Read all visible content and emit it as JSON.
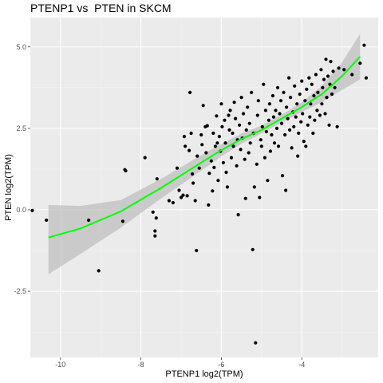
{
  "chart_data": {
    "type": "scatter",
    "title": "PTENP1 vs  PTEN in SKCM",
    "xlabel": "PTENP1 log2(TPM)",
    "ylabel": "PTEN log2(TPM)",
    "xlim": [
      -10.75,
      -2.1
    ],
    "ylim": [
      -4.53,
      5.9
    ],
    "xticks": [
      -10,
      -8,
      -6,
      -4
    ],
    "yticks": [
      -2.5,
      0.0,
      2.5,
      5.0
    ],
    "x_tick_labels": [
      "-10",
      "-8",
      "-6",
      "-4"
    ],
    "y_tick_labels": [
      "-2.5",
      "0.0",
      "2.5",
      "5.0"
    ],
    "grid": true,
    "colors": {
      "panel": "#ebebeb",
      "grid_major": "#ffffff",
      "grid_minor": "#f5f5f5",
      "points": "#000000",
      "fit_line": "#00ff00",
      "ribbon": "#bfbfbf"
    },
    "fit": {
      "x": [
        -10.3,
        -9.5,
        -8.5,
        -7.5,
        -6.5,
        -6.0,
        -5.5,
        -5.0,
        -4.5,
        -4.0,
        -3.5,
        -3.0,
        -2.55
      ],
      "y": [
        -0.85,
        -0.57,
        -0.05,
        0.67,
        1.45,
        1.83,
        2.17,
        2.45,
        2.8,
        3.15,
        3.55,
        4.1,
        4.7
      ],
      "lower": [
        -1.98,
        -1.35,
        -0.55,
        0.35,
        1.2,
        1.64,
        2.03,
        2.34,
        2.68,
        3.0,
        3.3,
        3.68,
        4.0
      ],
      "upper": [
        0.15,
        0.12,
        0.3,
        0.95,
        1.68,
        2.02,
        2.34,
        2.59,
        2.92,
        3.3,
        3.8,
        4.52,
        5.4
      ]
    },
    "points": [
      [
        -10.7,
        -0.02
      ],
      [
        -10.35,
        -0.32
      ],
      [
        -9.3,
        -0.32
      ],
      [
        -9.05,
        -1.87
      ],
      [
        -8.45,
        -0.35
      ],
      [
        -8.4,
        1.23
      ],
      [
        -8.38,
        1.2
      ],
      [
        -7.9,
        1.6
      ],
      [
        -7.7,
        -0.07
      ],
      [
        -7.65,
        -0.65
      ],
      [
        -7.65,
        -0.8
      ],
      [
        -7.62,
        -0.25
      ],
      [
        -7.6,
        0.95
      ],
      [
        -7.3,
        0.28
      ],
      [
        -7.2,
        0.22
      ],
      [
        -7.1,
        1.28
      ],
      [
        -7.05,
        0.6
      ],
      [
        -7.0,
        0.38
      ],
      [
        -6.95,
        0.45
      ],
      [
        -6.92,
        2.25
      ],
      [
        -6.9,
        1.95
      ],
      [
        -6.85,
        0.43
      ],
      [
        -6.8,
        1.82
      ],
      [
        -6.78,
        3.6
      ],
      [
        -6.75,
        2.35
      ],
      [
        -6.72,
        1.1
      ],
      [
        -6.7,
        0.82
      ],
      [
        -6.65,
        0.28
      ],
      [
        -6.62,
        -1.25
      ],
      [
        -6.6,
        1.65
      ],
      [
        -6.55,
        1.28
      ],
      [
        -6.5,
        2.3
      ],
      [
        -6.48,
        2.0
      ],
      [
        -6.45,
        3.2
      ],
      [
        -6.4,
        2.55
      ],
      [
        -6.38,
        1.75
      ],
      [
        -6.35,
        2.58
      ],
      [
        -6.32,
        0.15
      ],
      [
        -6.3,
        1.12
      ],
      [
        -6.25,
        1.5
      ],
      [
        -6.22,
        0.58
      ],
      [
        -6.2,
        2.35
      ],
      [
        -6.18,
        1.3
      ],
      [
        -6.15,
        1.95
      ],
      [
        -6.12,
        2.88
      ],
      [
        -6.1,
        2.05
      ],
      [
        -6.08,
        0.9
      ],
      [
        -6.05,
        2.25
      ],
      [
        -6.02,
        1.8
      ],
      [
        -6.0,
        3.25
      ],
      [
        -5.98,
        2.55
      ],
      [
        -5.95,
        1.45
      ],
      [
        -5.92,
        2.75
      ],
      [
        -5.9,
        2.05
      ],
      [
        -5.88,
        1.15
      ],
      [
        -5.85,
        0.7
      ],
      [
        -5.82,
        2.9
      ],
      [
        -5.8,
        2.45
      ],
      [
        -5.78,
        3.05
      ],
      [
        -5.75,
        1.6
      ],
      [
        -5.72,
        2.35
      ],
      [
        -5.7,
        1.95
      ],
      [
        -5.68,
        3.3
      ],
      [
        -5.65,
        2.8
      ],
      [
        -5.62,
        1.35
      ],
      [
        -5.6,
        2.15
      ],
      [
        -5.58,
        -0.15
      ],
      [
        -5.55,
        2.6
      ],
      [
        -5.52,
        1.85
      ],
      [
        -5.5,
        3.45
      ],
      [
        -5.48,
        2.2
      ],
      [
        -5.45,
        2.95
      ],
      [
        -5.42,
        1.55
      ],
      [
        -5.4,
        0.35
      ],
      [
        -5.38,
        2.45
      ],
      [
        -5.35,
        3.15
      ],
      [
        -5.32,
        1.75
      ],
      [
        -5.3,
        2.65
      ],
      [
        -5.28,
        2.05
      ],
      [
        -5.25,
        3.6
      ],
      [
        -5.22,
        -1.22
      ],
      [
        -5.2,
        2.35
      ],
      [
        -5.18,
        0.7
      ],
      [
        -5.15,
        -4.08
      ],
      [
        -5.12,
        1.4
      ],
      [
        -5.1,
        2.9
      ],
      [
        -5.08,
        3.35
      ],
      [
        -5.05,
        0.38
      ],
      [
        -5.02,
        2.15
      ],
      [
        -5.0,
        1.95
      ],
      [
        -4.98,
        2.55
      ],
      [
        -4.95,
        3.85
      ],
      [
        -4.92,
        1.6
      ],
      [
        -4.9,
        3.05
      ],
      [
        -4.88,
        2.4
      ],
      [
        -4.85,
        0.9
      ],
      [
        -4.82,
        2.75
      ],
      [
        -4.8,
        3.25
      ],
      [
        -4.78,
        1.8
      ],
      [
        -4.75,
        2.3
      ],
      [
        -4.72,
        3.5
      ],
      [
        -4.7,
        2.85
      ],
      [
        -4.68,
        2.05
      ],
      [
        -4.65,
        3.05
      ],
      [
        -4.62,
        2.5
      ],
      [
        -4.6,
        3.75
      ],
      [
        -4.58,
        1.95
      ],
      [
        -4.55,
        2.95
      ],
      [
        -4.52,
        3.35
      ],
      [
        -4.5,
        2.65
      ],
      [
        -4.48,
        1.05
      ],
      [
        -4.45,
        3.6
      ],
      [
        -4.42,
        2.3
      ],
      [
        -4.4,
        0.6
      ],
      [
        -4.38,
        3.15
      ],
      [
        -4.35,
        2.8
      ],
      [
        -4.32,
        4.05
      ],
      [
        -4.3,
        2.45
      ],
      [
        -4.28,
        3.45
      ],
      [
        -4.25,
        1.9
      ],
      [
        -4.22,
        3.0
      ],
      [
        -4.2,
        2.55
      ],
      [
        -4.18,
        3.8
      ],
      [
        -4.15,
        2.85
      ],
      [
        -4.12,
        3.25
      ],
      [
        -4.1,
        1.65
      ],
      [
        -4.08,
        2.35
      ],
      [
        -4.05,
        3.55
      ],
      [
        -4.02,
        2.7
      ],
      [
        -4.0,
        3.95
      ],
      [
        -3.98,
        2.95
      ],
      [
        -3.95,
        2.1
      ],
      [
        -3.92,
        3.35
      ],
      [
        -3.9,
        1.95
      ],
      [
        -3.88,
        3.7
      ],
      [
        -3.85,
        2.6
      ],
      [
        -3.82,
        4.05
      ],
      [
        -3.8,
        2.85
      ],
      [
        -3.78,
        3.25
      ],
      [
        -3.75,
        3.85
      ],
      [
        -3.72,
        2.35
      ],
      [
        -3.7,
        3.5
      ],
      [
        -3.68,
        2.75
      ],
      [
        -3.65,
        4.15
      ],
      [
        -3.62,
        3.05
      ],
      [
        -3.6,
        3.6
      ],
      [
        -3.55,
        2.9
      ],
      [
        -3.52,
        4.3
      ],
      [
        -3.5,
        3.25
      ],
      [
        -3.48,
        3.75
      ],
      [
        -3.45,
        4.0
      ],
      [
        -3.42,
        2.95
      ],
      [
        -3.4,
        4.62
      ],
      [
        -3.38,
        3.45
      ],
      [
        -3.35,
        4.1
      ],
      [
        -3.32,
        2.6
      ],
      [
        -3.3,
        3.85
      ],
      [
        -3.28,
        4.55
      ],
      [
        -3.25,
        3.55
      ],
      [
        -3.22,
        4.25
      ],
      [
        -3.18,
        3.75
      ],
      [
        -3.12,
        2.55
      ],
      [
        -3.08,
        4.35
      ],
      [
        -2.95,
        4.3
      ],
      [
        -2.75,
        4.15
      ],
      [
        -2.55,
        4.5
      ],
      [
        -2.45,
        5.05
      ],
      [
        -2.4,
        4.05
      ]
    ]
  }
}
